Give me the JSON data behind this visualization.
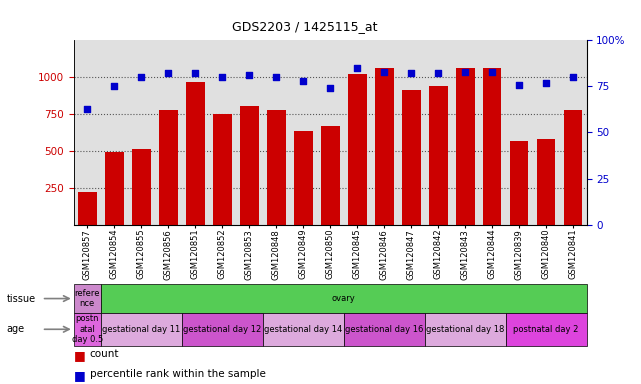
{
  "title": "GDS2203 / 1425115_at",
  "samples": [
    "GSM120857",
    "GSM120854",
    "GSM120855",
    "GSM120856",
    "GSM120851",
    "GSM120852",
    "GSM120853",
    "GSM120848",
    "GSM120849",
    "GSM120850",
    "GSM120845",
    "GSM120846",
    "GSM120847",
    "GSM120842",
    "GSM120843",
    "GSM120844",
    "GSM120839",
    "GSM120840",
    "GSM120841"
  ],
  "counts": [
    220,
    490,
    510,
    780,
    970,
    750,
    805,
    775,
    635,
    670,
    1020,
    1060,
    915,
    940,
    1060,
    1060,
    570,
    580,
    775
  ],
  "percentiles": [
    63,
    75,
    80,
    82,
    82,
    80,
    81,
    80,
    78,
    74,
    85,
    83,
    82,
    82,
    83,
    83,
    76,
    77,
    80
  ],
  "bar_color": "#CC0000",
  "dot_color": "#0000CC",
  "ylim_left": [
    0,
    1250
  ],
  "ylim_right": [
    0,
    100
  ],
  "yticks_left": [
    250,
    500,
    750,
    1000
  ],
  "yticks_right": [
    0,
    25,
    50,
    75,
    100
  ],
  "tissue_segments": [
    {
      "text": "refere\nnce",
      "color": "#CC88CC",
      "xstart": 0,
      "xend": 1
    },
    {
      "text": "ovary",
      "color": "#55CC55",
      "xstart": 1,
      "xend": 19
    }
  ],
  "age_segments": [
    {
      "text": "postn\natal\nday 0.5",
      "color": "#DD66DD",
      "xstart": 0,
      "xend": 1
    },
    {
      "text": "gestational day 11",
      "color": "#DDAADD",
      "xstart": 1,
      "xend": 4
    },
    {
      "text": "gestational day 12",
      "color": "#CC55CC",
      "xstart": 4,
      "xend": 7
    },
    {
      "text": "gestational day 14",
      "color": "#DDAADD",
      "xstart": 7,
      "xend": 10
    },
    {
      "text": "gestational day 16",
      "color": "#CC55CC",
      "xstart": 10,
      "xend": 13
    },
    {
      "text": "gestational day 18",
      "color": "#DDAADD",
      "xstart": 13,
      "xend": 16
    },
    {
      "text": "postnatal day 2",
      "color": "#DD44DD",
      "xstart": 16,
      "xend": 19
    }
  ],
  "chart_bg": "#E0E0E0",
  "xticklabel_bg": "#D0D0D0",
  "dotline_color": "#555555",
  "dotline_style": ":",
  "dotline_lw": 0.8
}
